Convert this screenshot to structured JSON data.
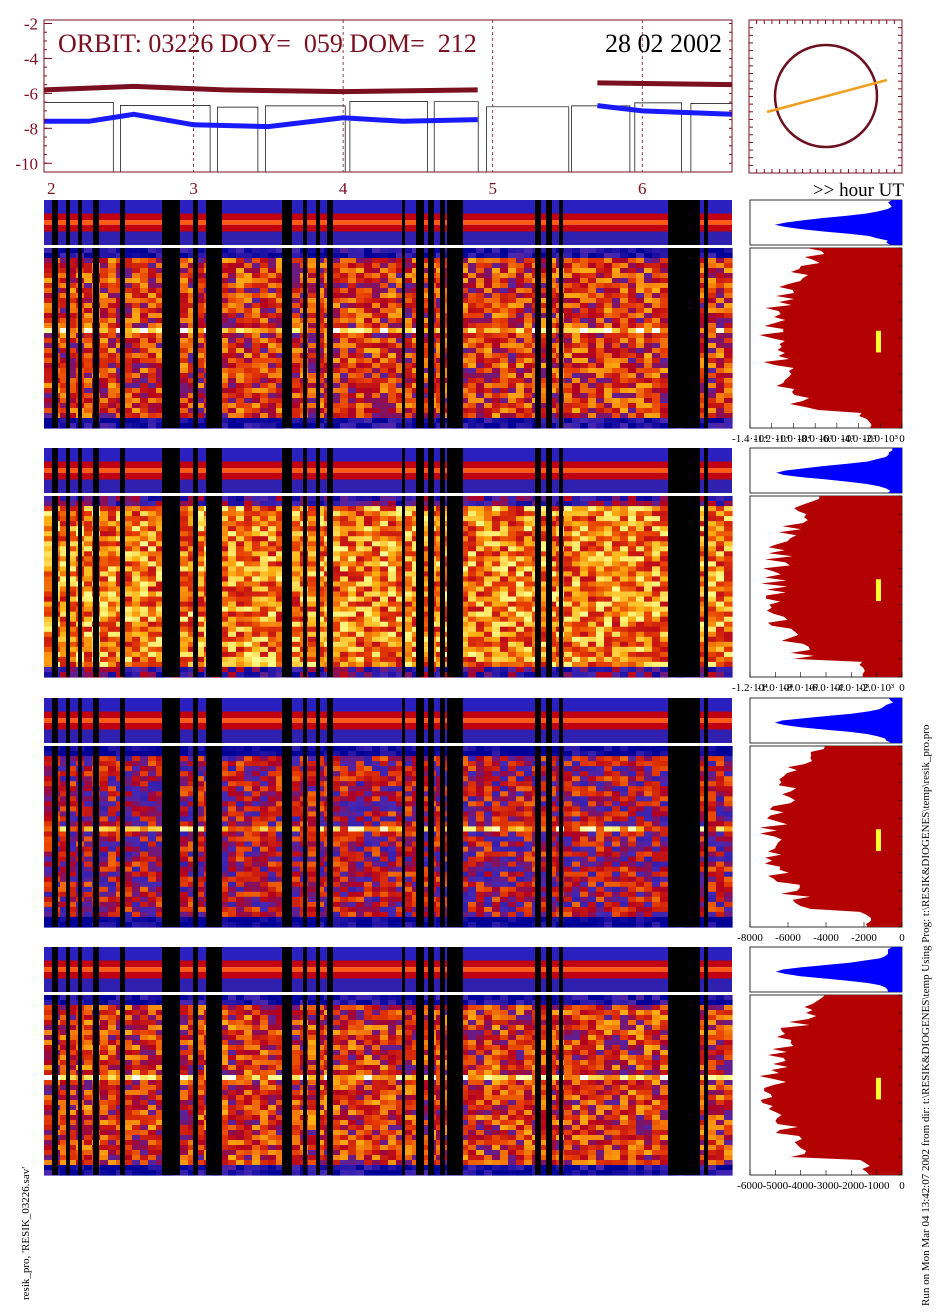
{
  "header": {
    "orbit_text": "ORBIT: 03226 DOY=  059 DOM=  212",
    "date_text": "28 02 2002"
  },
  "chart_data": {
    "type": "line",
    "ylim": [
      -10.5,
      -1.8
    ],
    "yticks": [
      "-2",
      "-4",
      "-6",
      "-8",
      "-10"
    ],
    "xlim": [
      2.0,
      6.6
    ],
    "hour_ticks": [
      "2",
      "3",
      "4",
      "5",
      "6"
    ],
    "hour_axis_label": ">> hour UT",
    "series": [
      {
        "color": "#7a0f1f",
        "x": [
          2.0,
          2.6,
          3.2,
          4.0,
          4.9,
          5.7,
          6.6
        ],
        "values": [
          -5.8,
          -5.6,
          -5.8,
          -5.9,
          -5.8,
          -5.4,
          -5.5
        ]
      },
      {
        "color": "#1a1aff",
        "x": [
          2.0,
          2.3,
          2.6,
          3.0,
          3.5,
          4.0,
          4.4,
          4.9,
          5.7,
          6.0,
          6.6
        ],
        "values": [
          -7.6,
          -7.6,
          -7.2,
          -7.8,
          -7.9,
          -7.4,
          -7.6,
          -7.5,
          -6.7,
          -7.0,
          -7.2
        ]
      }
    ],
    "histogram_axes": [
      [
        "-1.4·10⁴",
        "-1.2·10⁴",
        "-1.0·10⁴",
        "-8.0·10³",
        "-6.0·10³",
        "-4.0·10³",
        "-2.0·10³",
        "0"
      ],
      [
        "-1.2·10⁴",
        "-1.0·10⁴",
        "-8.0·10³",
        "-6.0·10³",
        "-4.0·10³",
        "-2.0·10³",
        "0"
      ],
      [
        "-8000",
        "-6000",
        "-4000",
        "-2000",
        "0"
      ],
      [
        "-6000",
        "-5000",
        "-4000",
        "-3000",
        "-2000",
        "-1000",
        "0"
      ]
    ]
  },
  "colors": {
    "axis": "#7a0f1f",
    "hist_fill": "#b30000",
    "hist_top_fill": "#0000ff",
    "orbit_line": "#f0a020"
  },
  "footer": {
    "left_text": "resik_pro, 'RESIK_03226.sav'",
    "right_text": "Run on Mon Mar 04 13:42:07 2002  from dir: t:\\RESIK&DIOGENES\\temp Using Prog: t:\\RESIK&DIOGENES\\temp\\resik_pro.pro"
  }
}
